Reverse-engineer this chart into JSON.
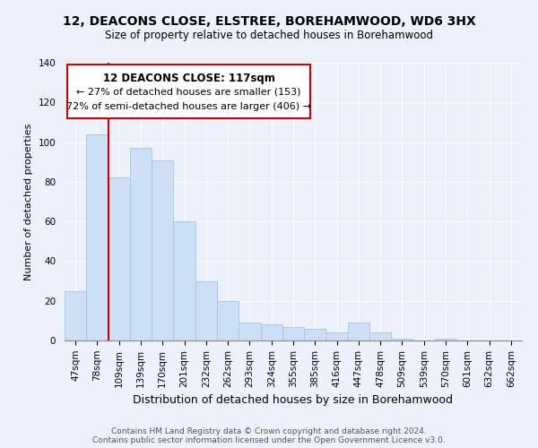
{
  "title": "12, DEACONS CLOSE, ELSTREE, BOREHAMWOOD, WD6 3HX",
  "subtitle": "Size of property relative to detached houses in Borehamwood",
  "xlabel": "Distribution of detached houses by size in Borehamwood",
  "ylabel": "Number of detached properties",
  "bar_labels": [
    "47sqm",
    "78sqm",
    "109sqm",
    "139sqm",
    "170sqm",
    "201sqm",
    "232sqm",
    "262sqm",
    "293sqm",
    "324sqm",
    "355sqm",
    "385sqm",
    "416sqm",
    "447sqm",
    "478sqm",
    "509sqm",
    "539sqm",
    "570sqm",
    "601sqm",
    "632sqm",
    "662sqm"
  ],
  "bar_values": [
    25,
    104,
    82,
    97,
    91,
    60,
    30,
    20,
    9,
    8,
    7,
    6,
    4,
    9,
    4,
    1,
    0,
    1,
    0,
    0,
    0
  ],
  "bar_color": "#ccdff5",
  "bar_edge_color": "#a8c4e0",
  "vline_color": "#cc0000",
  "ylim": [
    0,
    140
  ],
  "yticks": [
    0,
    20,
    40,
    60,
    80,
    100,
    120,
    140
  ],
  "annotation_title": "12 DEACONS CLOSE: 117sqm",
  "annotation_line1": "← 27% of detached houses are smaller (153)",
  "annotation_line2": "72% of semi-detached houses are larger (406) →",
  "annotation_box_color": "#ffffff",
  "annotation_box_edge": "#cc0000",
  "footer_line1": "Contains HM Land Registry data © Crown copyright and database right 2024.",
  "footer_line2": "Contains public sector information licensed under the Open Government Licence v3.0.",
  "background_color": "#edf1fb",
  "grid_color": "#ffffff",
  "title_fontsize": 10,
  "subtitle_fontsize": 8.5,
  "ylabel_fontsize": 8,
  "xlabel_fontsize": 9,
  "tick_fontsize": 7.5,
  "footer_fontsize": 6.5
}
